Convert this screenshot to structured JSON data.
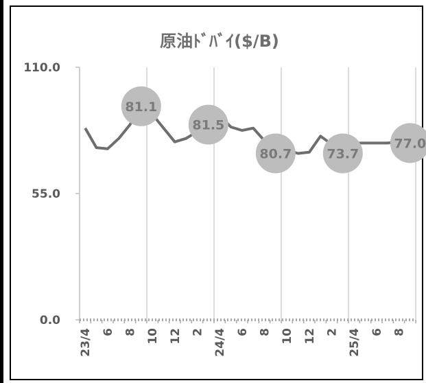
{
  "chart_data": {
    "type": "line",
    "title": "原油ﾄﾞﾊﾞｲ($/B)",
    "ylim": [
      0,
      110
    ],
    "yticks": [
      "110.0",
      "55.0",
      "0.0"
    ],
    "ytick_values": [
      110,
      55,
      0
    ],
    "xlabels": [
      "23/4",
      "6",
      "8",
      "10",
      "12",
      "2",
      "24/4",
      "6",
      "8",
      "10",
      "12",
      "2",
      "25/4",
      "6",
      "8"
    ],
    "xlabel_index": [
      0,
      2,
      4,
      6,
      8,
      10,
      12,
      14,
      16,
      18,
      20,
      22,
      24,
      26,
      28
    ],
    "x": [
      "2023-04",
      "2023-05",
      "2023-06",
      "2023-07",
      "2023-08",
      "2023-09",
      "2023-10",
      "2023-11",
      "2023-12",
      "2024-01",
      "2024-02",
      "2024-03",
      "2024-04",
      "2024-05",
      "2024-06",
      "2024-07",
      "2024-08",
      "2024-09",
      "2024-10",
      "2024-11",
      "2024-12",
      "2025-01",
      "2025-02",
      "2025-03",
      "2025-04",
      "2025-05",
      "2025-06",
      "2025-07",
      "2025-08",
      "2025-09"
    ],
    "series": [
      {
        "values": [
          83.5,
          75.0,
          74.5,
          79.0,
          85.0,
          93.0,
          89.5,
          83.5,
          77.5,
          79.0,
          82.0,
          85.0,
          89.0,
          84.0,
          82.5,
          83.5,
          78.0,
          72.5,
          74.0,
          72.5,
          73.0,
          80.0,
          76.5,
          72.5,
          77.0,
          77.0,
          77.0,
          77.0,
          77.5,
          77.0
        ],
        "color": "#6e6e6e"
      }
    ],
    "data_labels": [
      {
        "index": 5,
        "text": "81.1"
      },
      {
        "index": 11,
        "text": "81.5"
      },
      {
        "index": 17,
        "text": "80.7"
      },
      {
        "index": 23,
        "text": "73.7"
      },
      {
        "index": 29,
        "text": "77.0"
      }
    ],
    "vertical_grid_at": [
      6,
      12,
      18,
      24,
      30
    ],
    "grid": true,
    "label_bubble_color": "#bdbdbd",
    "gridline_color": "#d0d0d0"
  }
}
